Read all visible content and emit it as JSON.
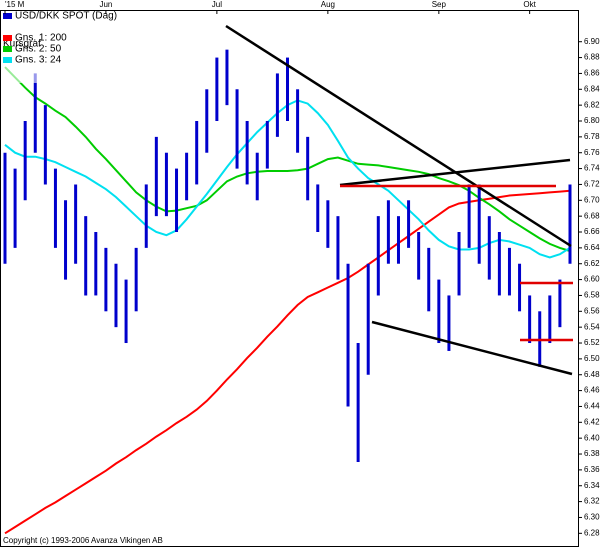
{
  "chart_data": {
    "type": "stock",
    "legend_subtitle": "Kursgraf",
    "copyright": "Copyright (c) 1993-2006 Avanza Vikingen AB",
    "categories": [
      "'15 M",
      null,
      null,
      null,
      null,
      null,
      null,
      null,
      null,
      null,
      "Jun",
      null,
      null,
      null,
      null,
      null,
      null,
      null,
      null,
      null,
      null,
      "Jul",
      null,
      null,
      null,
      null,
      null,
      null,
      null,
      null,
      null,
      null,
      "Aug",
      null,
      null,
      null,
      null,
      null,
      null,
      null,
      null,
      null,
      null,
      "Sep",
      null,
      null,
      null,
      null,
      null,
      null,
      null,
      null,
      "Okt",
      null,
      null,
      null,
      null
    ],
    "ylim": [
      6.264,
      6.94
    ],
    "yticks": [
      6.28,
      {
        "value": 6.3,
        "label": "6.30"
      },
      6.32,
      6.34,
      6.36,
      6.38,
      {
        "value": 6.4,
        "label": "6.40"
      },
      6.42,
      6.44,
      6.46,
      6.48,
      {
        "value": 6.5,
        "label": "6.50"
      },
      6.52,
      6.54,
      6.56,
      6.58,
      {
        "value": 6.6,
        "label": "6.60"
      },
      6.62,
      6.64,
      6.66,
      6.68,
      {
        "value": 6.7,
        "label": "6.70"
      },
      6.72,
      6.74,
      6.76,
      6.78,
      {
        "value": 6.8,
        "label": "6.80"
      },
      6.82,
      6.84,
      6.86,
      6.88,
      {
        "value": 6.9,
        "label": "6.90"
      }
    ],
    "series": [
      {
        "name": "USD/DKK SPOT (Dag)",
        "color": "#0000cc",
        "high": [
          6.76,
          6.74,
          6.8,
          6.86,
          6.82,
          6.74,
          6.7,
          6.72,
          6.68,
          6.66,
          6.64,
          6.62,
          6.6,
          6.64,
          6.72,
          6.78,
          6.76,
          6.74,
          6.76,
          6.8,
          6.84,
          6.88,
          6.89,
          6.84,
          6.8,
          6.76,
          6.8,
          6.86,
          6.88,
          6.84,
          6.78,
          6.72,
          6.7,
          6.68,
          6.62,
          6.52,
          6.62,
          6.68,
          6.7,
          6.68,
          6.7,
          6.66,
          6.64,
          6.6,
          6.58,
          6.66,
          6.72,
          6.72,
          6.68,
          6.66,
          6.64,
          6.62,
          6.58,
          6.56,
          6.58,
          6.6,
          6.72
        ],
        "low": [
          6.62,
          6.64,
          6.7,
          6.76,
          6.72,
          6.64,
          6.6,
          6.62,
          6.58,
          6.58,
          6.56,
          6.54,
          6.52,
          6.56,
          6.64,
          6.68,
          6.68,
          6.66,
          6.7,
          6.72,
          6.76,
          6.8,
          6.82,
          6.74,
          6.72,
          6.7,
          6.74,
          6.78,
          6.8,
          6.76,
          6.7,
          6.66,
          6.64,
          6.6,
          6.44,
          6.37,
          6.48,
          6.58,
          6.62,
          6.62,
          6.64,
          6.6,
          6.56,
          6.52,
          6.51,
          6.58,
          6.64,
          6.62,
          6.6,
          6.58,
          6.58,
          6.56,
          6.52,
          6.49,
          6.52,
          6.54,
          6.62
        ]
      },
      {
        "name": "Gns. 1: 200",
        "color": "#ff0000",
        "values": [
          6.28,
          6.288,
          6.296,
          6.304,
          6.312,
          6.319,
          6.327,
          6.335,
          6.343,
          6.351,
          6.359,
          6.368,
          6.376,
          6.385,
          6.393,
          6.402,
          6.41,
          6.419,
          6.427,
          6.436,
          6.447,
          6.46,
          6.474,
          6.487,
          6.501,
          6.514,
          6.528,
          6.541,
          6.555,
          6.568,
          6.578,
          6.584,
          6.59,
          6.596,
          6.602,
          6.61,
          6.619,
          6.628,
          6.637,
          6.646,
          6.655,
          6.664,
          6.673,
          6.682,
          6.691,
          6.696,
          6.698,
          6.7,
          6.702,
          6.704,
          6.706,
          6.707,
          6.708,
          6.709,
          6.71,
          6.711,
          6.712
        ]
      },
      {
        "name": "Gns. 2: 50",
        "color": "#00cc00",
        "values": [
          6.868,
          6.855,
          6.842,
          6.83,
          6.822,
          6.813,
          6.805,
          6.793,
          6.78,
          6.765,
          6.752,
          6.738,
          6.724,
          6.71,
          6.7,
          6.692,
          6.686,
          6.687,
          6.69,
          6.693,
          6.7,
          6.712,
          6.724,
          6.73,
          6.734,
          6.736,
          6.737,
          6.737,
          6.737,
          6.738,
          6.74,
          6.746,
          6.752,
          6.754,
          6.75,
          6.746,
          6.745,
          6.744,
          6.742,
          6.74,
          6.738,
          6.736,
          6.733,
          6.728,
          6.724,
          6.719,
          6.712,
          6.703,
          6.695,
          6.686,
          6.676,
          6.668,
          6.66,
          6.652,
          6.645,
          6.64,
          6.636
        ]
      },
      {
        "name": "Gns. 3: 24",
        "color": "#00e0f0",
        "values": [
          6.77,
          6.76,
          6.755,
          6.755,
          6.752,
          6.748,
          6.742,
          6.736,
          6.73,
          6.722,
          6.714,
          6.704,
          6.692,
          6.68,
          6.668,
          6.66,
          6.656,
          6.662,
          6.676,
          6.692,
          6.708,
          6.725,
          6.742,
          6.758,
          6.772,
          6.786,
          6.798,
          6.81,
          6.82,
          6.826,
          6.822,
          6.81,
          6.795,
          6.775,
          6.754,
          6.74,
          6.728,
          6.72,
          6.712,
          6.7,
          6.688,
          6.676,
          6.662,
          6.65,
          6.642,
          6.638,
          6.638,
          6.64,
          6.646,
          6.65,
          6.648,
          6.644,
          6.64,
          6.632,
          6.628,
          6.632,
          6.64
        ]
      }
    ]
  }
}
